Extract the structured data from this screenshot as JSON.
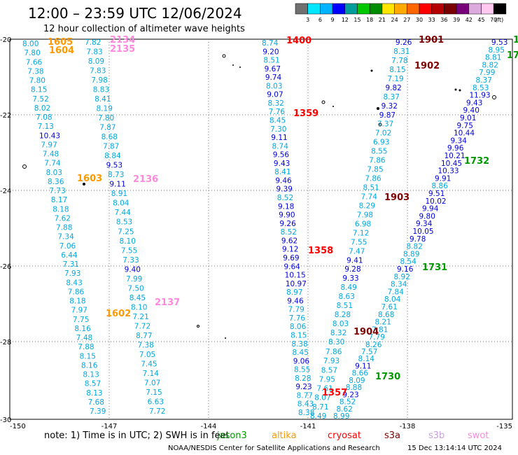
{
  "title": "12:00 – 23:59 UTC 12/06/2024",
  "subtitle": "12 hour collection of altimeter wave heights",
  "legend": {
    "ticks": [
      "3",
      "6",
      "9",
      "12",
      "15",
      "18",
      "21",
      "24",
      "27",
      "30",
      "33",
      "36",
      "39",
      "42",
      "45",
      "70",
      "(ft)"
    ],
    "colors": [
      "#707070",
      "#00e6ff",
      "#00b4ff",
      "#0000ff",
      "#009c9c",
      "#00c800",
      "#008c00",
      "#ffe600",
      "#ffaa00",
      "#ff6600",
      "#ff0000",
      "#b40000",
      "#780000",
      "#780078",
      "#dcaadc",
      "#ffc8f0",
      "#000000"
    ]
  },
  "map": {
    "lon_range": [
      -150,
      -135
    ],
    "lat_range": [
      -30,
      -20
    ],
    "lon_ticks": [
      "-150",
      "-147",
      "-144",
      "-141",
      "-138",
      "-135"
    ],
    "lat_ticks": [
      "-20",
      "-22",
      "-24",
      "-26",
      "-28",
      "-30"
    ]
  },
  "tracks": [
    {
      "values": [
        "8.00",
        "7.80",
        "7.66",
        "7.38",
        "7.80",
        "8.15",
        "7.52",
        "8.02",
        "7.08",
        "7.13",
        "10.43",
        "7.97",
        "7.48",
        "7.74",
        "8.03",
        "8.36",
        "7.73",
        "8.17",
        "8.18",
        "7.62",
        "7.88",
        "7.34",
        "7.06",
        "6.44",
        "7.31",
        "7.93",
        "8.43",
        "7.86",
        "8.18",
        "7.97",
        "7.75",
        "8.16",
        "7.48",
        "7.88",
        "8.15",
        "8.16",
        "8.13",
        "8.57",
        "8.13",
        "7.68",
        "7.39"
      ]
    },
    {
      "values": [
        "7.82",
        "7.83",
        "8.09",
        "7.83",
        "7.98",
        "8.83",
        "8.41",
        "8.19",
        "7.80",
        "7.87",
        "8.68",
        "7.87",
        "8.84",
        "9.53",
        "8.73",
        "9.11",
        "8.91",
        "8.04",
        "7.44",
        "8.53",
        "7.25",
        "8.10",
        "7.55",
        "7.33",
        "9.40",
        "7.99",
        "7.50",
        "8.45",
        "8.10",
        "7.21",
        "7.72",
        "8.77",
        "7.38",
        "7.05",
        "7.45",
        "7.14",
        "7.07",
        "7.15",
        "6.63",
        "7.72"
      ]
    },
    {
      "values": [
        "8.74",
        "9.20",
        "8.51",
        "9.67",
        "9.74",
        "8.03",
        "9.07",
        "8.32",
        "7.76",
        "8.45",
        "7.30",
        "9.11",
        "8.74",
        "9.56",
        "9.43",
        "8.41",
        "9.46",
        "9.39",
        "8.52",
        "9.18",
        "9.90",
        "9.26",
        "8.52",
        "9.62",
        "9.12",
        "9.69",
        "9.64",
        "10.15",
        "10.97",
        "8.97",
        "9.46",
        "7.79",
        "7.76",
        "8.06",
        "8.15",
        "8.38",
        "8.45",
        "9.06",
        "8.55",
        "8.28",
        "9.23",
        "8.77",
        "8.43",
        "8.38"
      ]
    },
    {
      "values": [
        "7.86",
        "7.93",
        "8.57",
        "7.95",
        "7.61",
        "8.07",
        "8.71",
        "8.49"
      ]
    },
    {
      "values": [
        "8.30",
        "8.32",
        "8.03",
        "8.28",
        "8.51",
        "8.63",
        "8.49",
        "9.33",
        "9.28",
        "9.41",
        "7.47",
        "7.55",
        "7.12",
        "6.98",
        "7.98",
        "8.29",
        "7.74",
        "8.51",
        "7.86",
        "7.85",
        "7.86",
        "8.55",
        "6.93",
        "7.02",
        "7.37",
        "9.87",
        "9.32",
        "8.37",
        "9.82",
        "7.19",
        "8.15",
        "7.78",
        "8.31",
        "9.26"
      ]
    },
    {
      "values": [
        "7.57",
        "8.14",
        "9.11",
        "8.66",
        "8.09",
        "8.88",
        "9.23",
        "8.52",
        "8.62",
        "8.99"
      ]
    },
    {
      "values": [
        "8.26",
        "7.79",
        "7.81",
        "8.21",
        "8.68",
        "7.61",
        "8.04",
        "7.84",
        "8.34",
        "8.92",
        "9.16",
        "8.54",
        "8.89",
        "8.82",
        "9.78",
        "10.05",
        "9.34",
        "9.80",
        "9.94",
        "10.02",
        "9.51",
        "8.86",
        "9.91",
        "10.33",
        "10.45",
        "10.21",
        "9.96",
        "9.34",
        "10.44",
        "9.75",
        "9.01",
        "9.40",
        "9.43",
        "11.93",
        "8.53",
        "8.37",
        "7.99",
        "8.82",
        "8.81",
        "8.95",
        "9.53"
      ]
    }
  ],
  "pass_labels": [
    {
      "text": "1605",
      "color": "#ff9900"
    },
    {
      "text": "1604",
      "color": "#ff9900"
    },
    {
      "text": "2134",
      "color": "#ff88dd"
    },
    {
      "text": "2135",
      "color": "#ff88dd"
    },
    {
      "text": "1603",
      "color": "#ff9900"
    },
    {
      "text": "2136",
      "color": "#ff88dd"
    },
    {
      "text": "1602",
      "color": "#ff9900"
    },
    {
      "text": "2137",
      "color": "#ff88dd"
    },
    {
      "text": "1400",
      "color": "#ff0000"
    },
    {
      "text": "1359",
      "color": "#ff0000"
    },
    {
      "text": "1358",
      "color": "#ff0000"
    },
    {
      "text": "1357",
      "color": "#ff0000"
    },
    {
      "text": "1901",
      "color": "#800000"
    },
    {
      "text": "1902",
      "color": "#800000"
    },
    {
      "text": "1903",
      "color": "#800000"
    },
    {
      "text": "1904",
      "color": "#800000"
    },
    {
      "text": "1732",
      "color": "#009900"
    },
    {
      "text": "1731",
      "color": "#009900"
    },
    {
      "text": "1730",
      "color": "#009900"
    },
    {
      "text": "1",
      "color": "#009900"
    },
    {
      "text": "17",
      "color": "#009900"
    }
  ],
  "note": "note: 1) Time is in UTC; 2) SWH is in feet",
  "satellites": [
    {
      "name": "jason3",
      "color": "#009900"
    },
    {
      "name": "altika",
      "color": "#ff9900"
    },
    {
      "name": "cryosat",
      "color": "#ff0000"
    },
    {
      "name": "s3a",
      "color": "#800000"
    },
    {
      "name": "s3b",
      "color": "#c8a0e0"
    },
    {
      "name": "swot",
      "color": "#ff88dd"
    }
  ],
  "credit": "NOAA/NESDIS Center for Satellite Applications and Research",
  "timestamp": "15 Dec 13:14:14 UTC 2024"
}
